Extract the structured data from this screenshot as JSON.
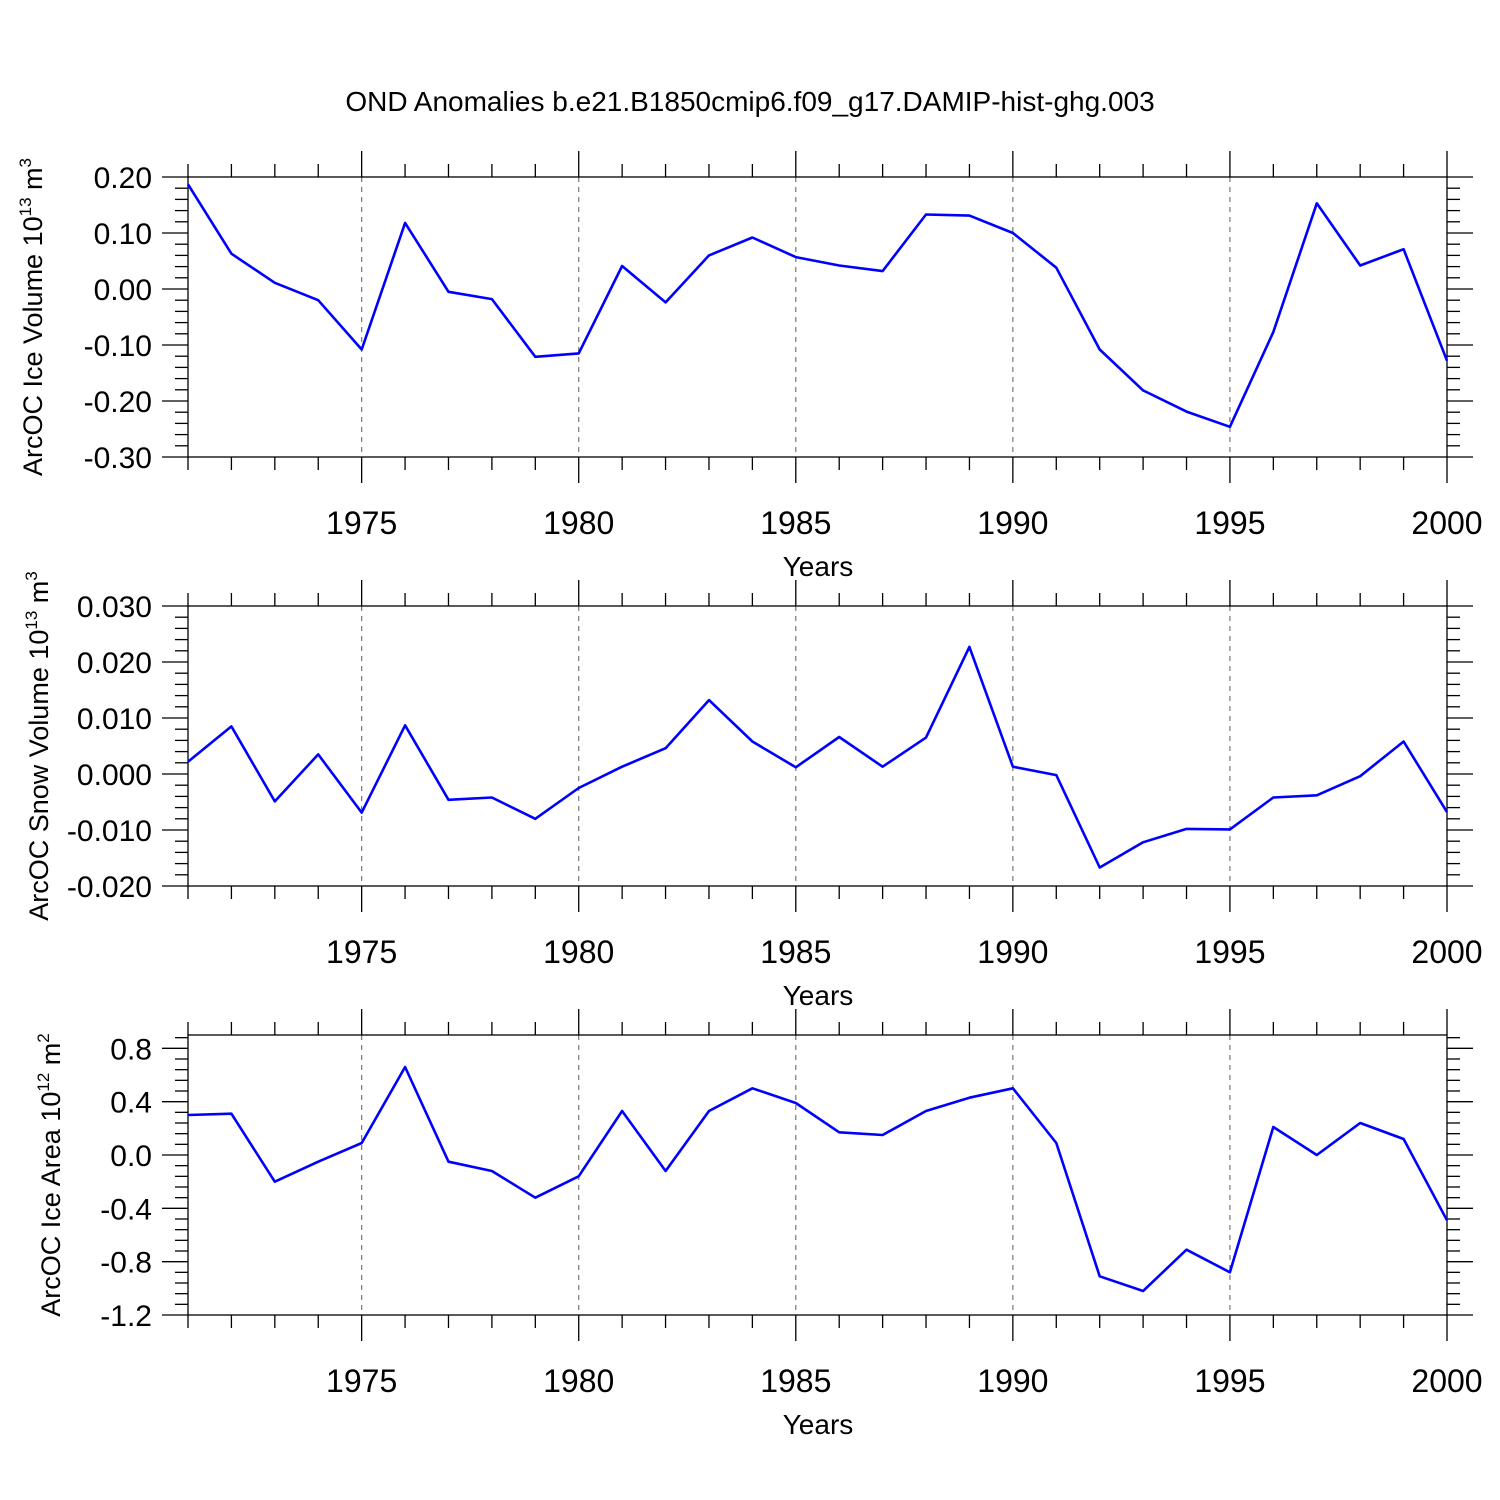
{
  "title": "OND Anomalies b.e21.B1850cmip6.f09_g17.DAMIP-hist-ghg.003",
  "colors": {
    "series": "#0000ff",
    "grid": "#777777",
    "axis": "#000000"
  },
  "chart_data": [
    {
      "type": "line",
      "xlabel": "Years",
      "ylabel": "ArcOC Ice Volume 10",
      "ylabel_exp": "13",
      "ylabel_unit": " m",
      "ylabel_unit_exp": "3",
      "xlim": [
        1971,
        2000
      ],
      "ylim": [
        -0.3,
        0.2
      ],
      "yticks": [
        0.2,
        0.1,
        0.0,
        -0.1,
        -0.2,
        -0.3
      ],
      "ytick_labels": [
        "0.20",
        "0.10",
        "0.00",
        "-0.10",
        "-0.20",
        "-0.30"
      ],
      "xticks": [
        1975,
        1980,
        1985,
        1990,
        1995,
        2000
      ],
      "xtick_labels": [
        "1975",
        "1980",
        "1985",
        "1990",
        "1995",
        "2000"
      ],
      "grid": "vertical dashed at major x ticks",
      "x": [
        1971,
        1972,
        1973,
        1974,
        1975,
        1976,
        1977,
        1978,
        1979,
        1980,
        1981,
        1982,
        1983,
        1984,
        1985,
        1986,
        1987,
        1988,
        1989,
        1990,
        1991,
        1992,
        1993,
        1994,
        1995,
        1996,
        1997,
        1998,
        1999,
        2000
      ],
      "y": [
        0.187,
        0.063,
        0.011,
        -0.02,
        -0.108,
        0.118,
        -0.005,
        -0.018,
        -0.121,
        -0.115,
        0.041,
        -0.024,
        0.06,
        0.092,
        0.057,
        0.042,
        0.032,
        0.133,
        0.131,
        0.1,
        0.038,
        -0.108,
        -0.181,
        -0.219,
        -0.246,
        -0.077,
        0.153,
        0.042,
        0.071,
        -0.128
      ]
    },
    {
      "type": "line",
      "xlabel": "Years",
      "ylabel": "ArcOC Snow Volume 10",
      "ylabel_exp": "13",
      "ylabel_unit": " m",
      "ylabel_unit_exp": "3",
      "xlim": [
        1971,
        2000
      ],
      "ylim": [
        -0.02,
        0.03
      ],
      "yticks": [
        0.03,
        0.02,
        0.01,
        0.0,
        -0.01,
        -0.02
      ],
      "ytick_labels": [
        "0.030",
        "0.020",
        "0.010",
        "0.000",
        "-0.010",
        "-0.020"
      ],
      "xticks": [
        1975,
        1980,
        1985,
        1990,
        1995,
        2000
      ],
      "xtick_labels": [
        "1975",
        "1980",
        "1985",
        "1990",
        "1995",
        "2000"
      ],
      "grid": "vertical dashed at major x ticks",
      "x": [
        1971,
        1972,
        1973,
        1974,
        1975,
        1976,
        1977,
        1978,
        1979,
        1980,
        1981,
        1982,
        1983,
        1984,
        1985,
        1986,
        1987,
        1988,
        1989,
        1990,
        1991,
        1992,
        1993,
        1994,
        1995,
        1996,
        1997,
        1998,
        1999,
        2000
      ],
      "y": [
        0.0022,
        0.0085,
        -0.0049,
        0.0035,
        -0.0069,
        0.0087,
        -0.0046,
        -0.0042,
        -0.008,
        -0.0025,
        0.0013,
        0.0046,
        0.0132,
        0.0058,
        0.0012,
        0.0066,
        0.0013,
        0.0065,
        0.0227,
        0.0013,
        -0.0002,
        -0.0167,
        -0.0122,
        -0.0098,
        -0.0099,
        -0.0042,
        -0.0038,
        -0.0004,
        0.0058,
        -0.0068
      ]
    },
    {
      "type": "line",
      "xlabel": "Years",
      "ylabel": "ArcOC Ice Area 10",
      "ylabel_exp": "12",
      "ylabel_unit": " m",
      "ylabel_unit_exp": "2",
      "xlim": [
        1971,
        2000
      ],
      "ylim": [
        -1.2,
        0.9
      ],
      "yticks": [
        0.8,
        0.4,
        0.0,
        -0.4,
        -0.8,
        -1.2
      ],
      "ytick_labels": [
        "0.8",
        "0.4",
        "0.0",
        "-0.4",
        "-0.8",
        "-1.2"
      ],
      "xticks": [
        1975,
        1980,
        1985,
        1990,
        1995,
        2000
      ],
      "xtick_labels": [
        "1975",
        "1980",
        "1985",
        "1990",
        "1995",
        "2000"
      ],
      "grid": "vertical dashed at major x ticks",
      "x": [
        1971,
        1972,
        1973,
        1974,
        1975,
        1976,
        1977,
        1978,
        1979,
        1980,
        1981,
        1982,
        1983,
        1984,
        1985,
        1986,
        1987,
        1988,
        1989,
        1990,
        1991,
        1992,
        1993,
        1994,
        1995,
        1996,
        1997,
        1998,
        1999,
        2000
      ],
      "y": [
        0.3,
        0.31,
        -0.2,
        -0.05,
        0.09,
        0.66,
        -0.05,
        -0.12,
        -0.32,
        -0.16,
        0.33,
        -0.12,
        0.33,
        0.5,
        0.39,
        0.17,
        0.15,
        0.33,
        0.43,
        0.5,
        0.09,
        -0.91,
        -1.02,
        -0.71,
        -0.88,
        0.21,
        0.0,
        0.24,
        0.12,
        -0.49
      ]
    }
  ]
}
